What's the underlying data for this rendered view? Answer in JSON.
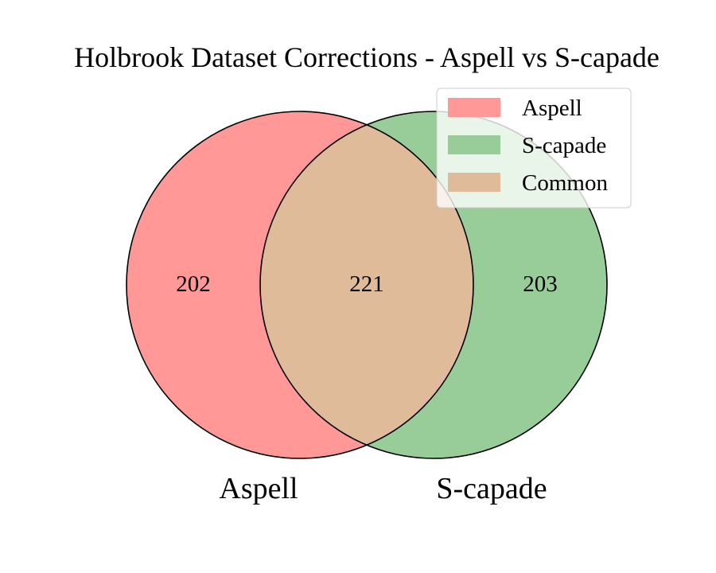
{
  "chart_data": {
    "type": "venn",
    "title": "Holbrook Dataset Corrections - Aspell vs S-capade",
    "sets": [
      {
        "name": "Aspell",
        "only": 202,
        "color": "#ff9896"
      },
      {
        "name": "S-capade",
        "only": 203,
        "color": "#98cc98"
      }
    ],
    "intersection": {
      "name": "Common",
      "value": 221,
      "color": "#dfbb99"
    },
    "legend": {
      "position": "upper-right",
      "entries": [
        {
          "label": "Aspell",
          "color": "#ff9896"
        },
        {
          "label": "S-capade",
          "color": "#98cc98"
        },
        {
          "label": "Common",
          "color": "#dfbb99"
        }
      ]
    }
  }
}
